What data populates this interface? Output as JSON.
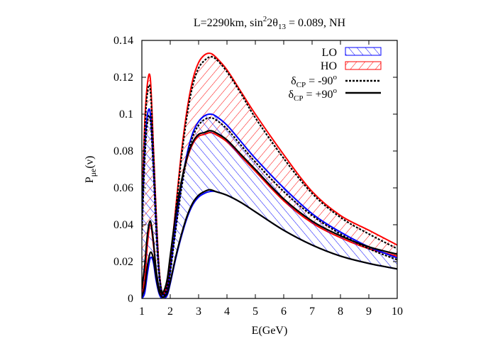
{
  "chart_data": {
    "type": "line",
    "title": "L=2290km, sin²2θ₁₃ = 0.089, NH",
    "title_parts": {
      "prefix": "L=2290km, sin",
      "sup": "2",
      "mid": "2θ",
      "sub": "13",
      "suffix": " = 0.089, NH"
    },
    "xlabel": "E(GeV)",
    "ylabel_parts": {
      "main": "P",
      "sub": "μe",
      "suffix": "(ν)"
    },
    "xlim": [
      1,
      10
    ],
    "ylim": [
      0,
      0.14
    ],
    "x_ticks": [
      "1",
      "2",
      "3",
      "4",
      "5",
      "6",
      "7",
      "8",
      "9",
      "10"
    ],
    "y_ticks": [
      "0",
      "0.02",
      "0.04",
      "0.06",
      "0.08",
      "0.1",
      "0.12",
      "0.14"
    ],
    "grid": false,
    "legend_position": "top-right",
    "legend": {
      "lo": "LO",
      "ho": "HO",
      "cp_minus_main": "δ",
      "cp_minus_sub": "CP",
      "cp_minus_rest": " = -90",
      "cp_minus_sup": "o",
      "cp_plus_main": "δ",
      "cp_plus_sub": "CP",
      "cp_plus_rest": " = +90",
      "cp_plus_sup": "o"
    },
    "colors": {
      "lo": "#0000ff",
      "ho": "#ff0000",
      "cp": "#000000"
    },
    "series": [
      {
        "name": "HO",
        "role": "band",
        "upper": [
          [
            1.0,
            0.05
          ],
          [
            1.1,
            0.095
          ],
          [
            1.2,
            0.117
          ],
          [
            1.3,
            0.119
          ],
          [
            1.4,
            0.085
          ],
          [
            1.5,
            0.048
          ],
          [
            1.6,
            0.018
          ],
          [
            1.7,
            0.004
          ],
          [
            1.8,
            0.003
          ],
          [
            1.9,
            0.008
          ],
          [
            2.0,
            0.02
          ],
          [
            2.2,
            0.05
          ],
          [
            2.4,
            0.08
          ],
          [
            2.6,
            0.103
          ],
          [
            2.8,
            0.119
          ],
          [
            3.0,
            0.128
          ],
          [
            3.2,
            0.132
          ],
          [
            3.4,
            0.133
          ],
          [
            3.6,
            0.131
          ],
          [
            4.0,
            0.124
          ],
          [
            4.5,
            0.112
          ],
          [
            5.0,
            0.1
          ],
          [
            6.0,
            0.078
          ],
          [
            7.0,
            0.058
          ],
          [
            8.0,
            0.045
          ],
          [
            9.0,
            0.037
          ],
          [
            10.0,
            0.029
          ]
        ],
        "lower": [
          [
            1.0,
            0.002
          ],
          [
            1.1,
            0.01
          ],
          [
            1.2,
            0.03
          ],
          [
            1.3,
            0.04
          ],
          [
            1.4,
            0.03
          ],
          [
            1.5,
            0.015
          ],
          [
            1.6,
            0.005
          ],
          [
            1.7,
            0.002
          ],
          [
            1.8,
            0.004
          ],
          [
            1.9,
            0.01
          ],
          [
            2.0,
            0.022
          ],
          [
            2.2,
            0.045
          ],
          [
            2.4,
            0.063
          ],
          [
            2.6,
            0.076
          ],
          [
            2.8,
            0.084
          ],
          [
            3.0,
            0.088
          ],
          [
            3.2,
            0.089
          ],
          [
            3.4,
            0.09
          ],
          [
            3.6,
            0.089
          ],
          [
            4.0,
            0.085
          ],
          [
            4.5,
            0.077
          ],
          [
            5.0,
            0.069
          ],
          [
            6.0,
            0.053
          ],
          [
            7.0,
            0.041
          ],
          [
            8.0,
            0.033
          ],
          [
            9.0,
            0.027
          ],
          [
            10.0,
            0.023
          ]
        ]
      },
      {
        "name": "LO",
        "role": "band",
        "upper": [
          [
            1.0,
            0.04
          ],
          [
            1.1,
            0.08
          ],
          [
            1.2,
            0.1
          ],
          [
            1.3,
            0.1
          ],
          [
            1.4,
            0.075
          ],
          [
            1.5,
            0.04
          ],
          [
            1.6,
            0.015
          ],
          [
            1.7,
            0.003
          ],
          [
            1.8,
            0.002
          ],
          [
            1.9,
            0.005
          ],
          [
            2.0,
            0.015
          ],
          [
            2.2,
            0.04
          ],
          [
            2.4,
            0.062
          ],
          [
            2.6,
            0.079
          ],
          [
            2.8,
            0.09
          ],
          [
            3.0,
            0.096
          ],
          [
            3.2,
            0.099
          ],
          [
            3.4,
            0.1
          ],
          [
            3.6,
            0.099
          ],
          [
            4.0,
            0.094
          ],
          [
            4.5,
            0.085
          ],
          [
            5.0,
            0.076
          ],
          [
            6.0,
            0.06
          ],
          [
            7.0,
            0.046
          ],
          [
            8.0,
            0.036
          ],
          [
            9.0,
            0.028
          ],
          [
            10.0,
            0.022
          ]
        ],
        "lower": [
          [
            1.0,
            0.0
          ],
          [
            1.1,
            0.003
          ],
          [
            1.2,
            0.014
          ],
          [
            1.3,
            0.022
          ],
          [
            1.4,
            0.02
          ],
          [
            1.5,
            0.01
          ],
          [
            1.6,
            0.003
          ],
          [
            1.7,
            0.0
          ],
          [
            1.8,
            0.0
          ],
          [
            1.9,
            0.002
          ],
          [
            2.0,
            0.008
          ],
          [
            2.2,
            0.022
          ],
          [
            2.4,
            0.034
          ],
          [
            2.6,
            0.044
          ],
          [
            2.8,
            0.051
          ],
          [
            3.0,
            0.055
          ],
          [
            3.2,
            0.057
          ],
          [
            3.4,
            0.058
          ],
          [
            3.6,
            0.058
          ],
          [
            4.0,
            0.056
          ],
          [
            4.5,
            0.052
          ],
          [
            5.0,
            0.047
          ],
          [
            6.0,
            0.037
          ],
          [
            7.0,
            0.029
          ],
          [
            8.0,
            0.023
          ],
          [
            9.0,
            0.019
          ],
          [
            10.0,
            0.016
          ]
        ]
      },
      {
        "name": "δCP = -90o",
        "role": "curve",
        "dash": true,
        "points": [
          [
            1.0,
            0.045
          ],
          [
            1.1,
            0.09
          ],
          [
            1.2,
            0.112
          ],
          [
            1.3,
            0.113
          ],
          [
            1.4,
            0.082
          ],
          [
            1.5,
            0.046
          ],
          [
            1.6,
            0.017
          ],
          [
            1.7,
            0.004
          ],
          [
            1.8,
            0.003
          ],
          [
            1.9,
            0.008
          ],
          [
            2.0,
            0.019
          ],
          [
            2.2,
            0.048
          ],
          [
            2.4,
            0.077
          ],
          [
            2.6,
            0.1
          ],
          [
            2.8,
            0.116
          ],
          [
            3.0,
            0.125
          ],
          [
            3.2,
            0.129
          ],
          [
            3.4,
            0.131
          ],
          [
            3.6,
            0.13
          ],
          [
            4.0,
            0.123
          ],
          [
            4.5,
            0.111
          ],
          [
            5.0,
            0.098
          ],
          [
            6.0,
            0.076
          ],
          [
            7.0,
            0.057
          ],
          [
            8.0,
            0.044
          ],
          [
            9.0,
            0.035
          ],
          [
            10.0,
            0.027
          ]
        ]
      },
      {
        "name": "δCP = +90o (HO)",
        "role": "curve",
        "dash": false,
        "points": [
          [
            1.0,
            0.005
          ],
          [
            1.1,
            0.018
          ],
          [
            1.2,
            0.035
          ],
          [
            1.3,
            0.042
          ],
          [
            1.4,
            0.032
          ],
          [
            1.5,
            0.016
          ],
          [
            1.6,
            0.006
          ],
          [
            1.7,
            0.003
          ],
          [
            1.8,
            0.005
          ],
          [
            1.9,
            0.011
          ],
          [
            2.0,
            0.023
          ],
          [
            2.2,
            0.046
          ],
          [
            2.4,
            0.064
          ],
          [
            2.6,
            0.077
          ],
          [
            2.8,
            0.085
          ],
          [
            3.0,
            0.089
          ],
          [
            3.2,
            0.09
          ],
          [
            3.4,
            0.091
          ],
          [
            3.6,
            0.09
          ],
          [
            4.0,
            0.086
          ],
          [
            4.5,
            0.078
          ],
          [
            5.0,
            0.07
          ],
          [
            6.0,
            0.054
          ],
          [
            7.0,
            0.042
          ],
          [
            8.0,
            0.034
          ],
          [
            9.0,
            0.028
          ],
          [
            10.0,
            0.024
          ]
        ]
      },
      {
        "name": "δCP = -90o (LO)",
        "role": "curve",
        "dash": true,
        "points": [
          [
            1.0,
            0.035
          ],
          [
            1.1,
            0.075
          ],
          [
            1.2,
            0.096
          ],
          [
            1.3,
            0.097
          ],
          [
            1.4,
            0.072
          ],
          [
            1.5,
            0.038
          ],
          [
            1.6,
            0.014
          ],
          [
            1.7,
            0.003
          ],
          [
            1.8,
            0.002
          ],
          [
            1.9,
            0.005
          ],
          [
            2.0,
            0.014
          ],
          [
            2.2,
            0.038
          ],
          [
            2.4,
            0.06
          ],
          [
            2.6,
            0.077
          ],
          [
            2.8,
            0.088
          ],
          [
            3.0,
            0.094
          ],
          [
            3.2,
            0.097
          ],
          [
            3.4,
            0.098
          ],
          [
            3.6,
            0.097
          ],
          [
            4.0,
            0.092
          ],
          [
            4.5,
            0.083
          ],
          [
            5.0,
            0.074
          ],
          [
            6.0,
            0.058
          ],
          [
            7.0,
            0.045
          ],
          [
            8.0,
            0.035
          ],
          [
            9.0,
            0.027
          ],
          [
            10.0,
            0.021
          ]
        ]
      },
      {
        "name": "δCP = +90o (LO)",
        "role": "curve",
        "dash": false,
        "points": [
          [
            1.0,
            0.001
          ],
          [
            1.1,
            0.006
          ],
          [
            1.2,
            0.018
          ],
          [
            1.3,
            0.025
          ],
          [
            1.4,
            0.022
          ],
          [
            1.5,
            0.012
          ],
          [
            1.6,
            0.004
          ],
          [
            1.7,
            0.001
          ],
          [
            1.8,
            0.001
          ],
          [
            1.9,
            0.003
          ],
          [
            2.0,
            0.009
          ],
          [
            2.2,
            0.023
          ],
          [
            2.4,
            0.035
          ],
          [
            2.6,
            0.045
          ],
          [
            2.8,
            0.052
          ],
          [
            3.0,
            0.056
          ],
          [
            3.2,
            0.058
          ],
          [
            3.4,
            0.059
          ],
          [
            3.6,
            0.058
          ],
          [
            4.0,
            0.056
          ],
          [
            4.5,
            0.052
          ],
          [
            5.0,
            0.047
          ],
          [
            6.0,
            0.037
          ],
          [
            7.0,
            0.029
          ],
          [
            8.0,
            0.023
          ],
          [
            9.0,
            0.019
          ],
          [
            10.0,
            0.016
          ]
        ]
      }
    ]
  }
}
